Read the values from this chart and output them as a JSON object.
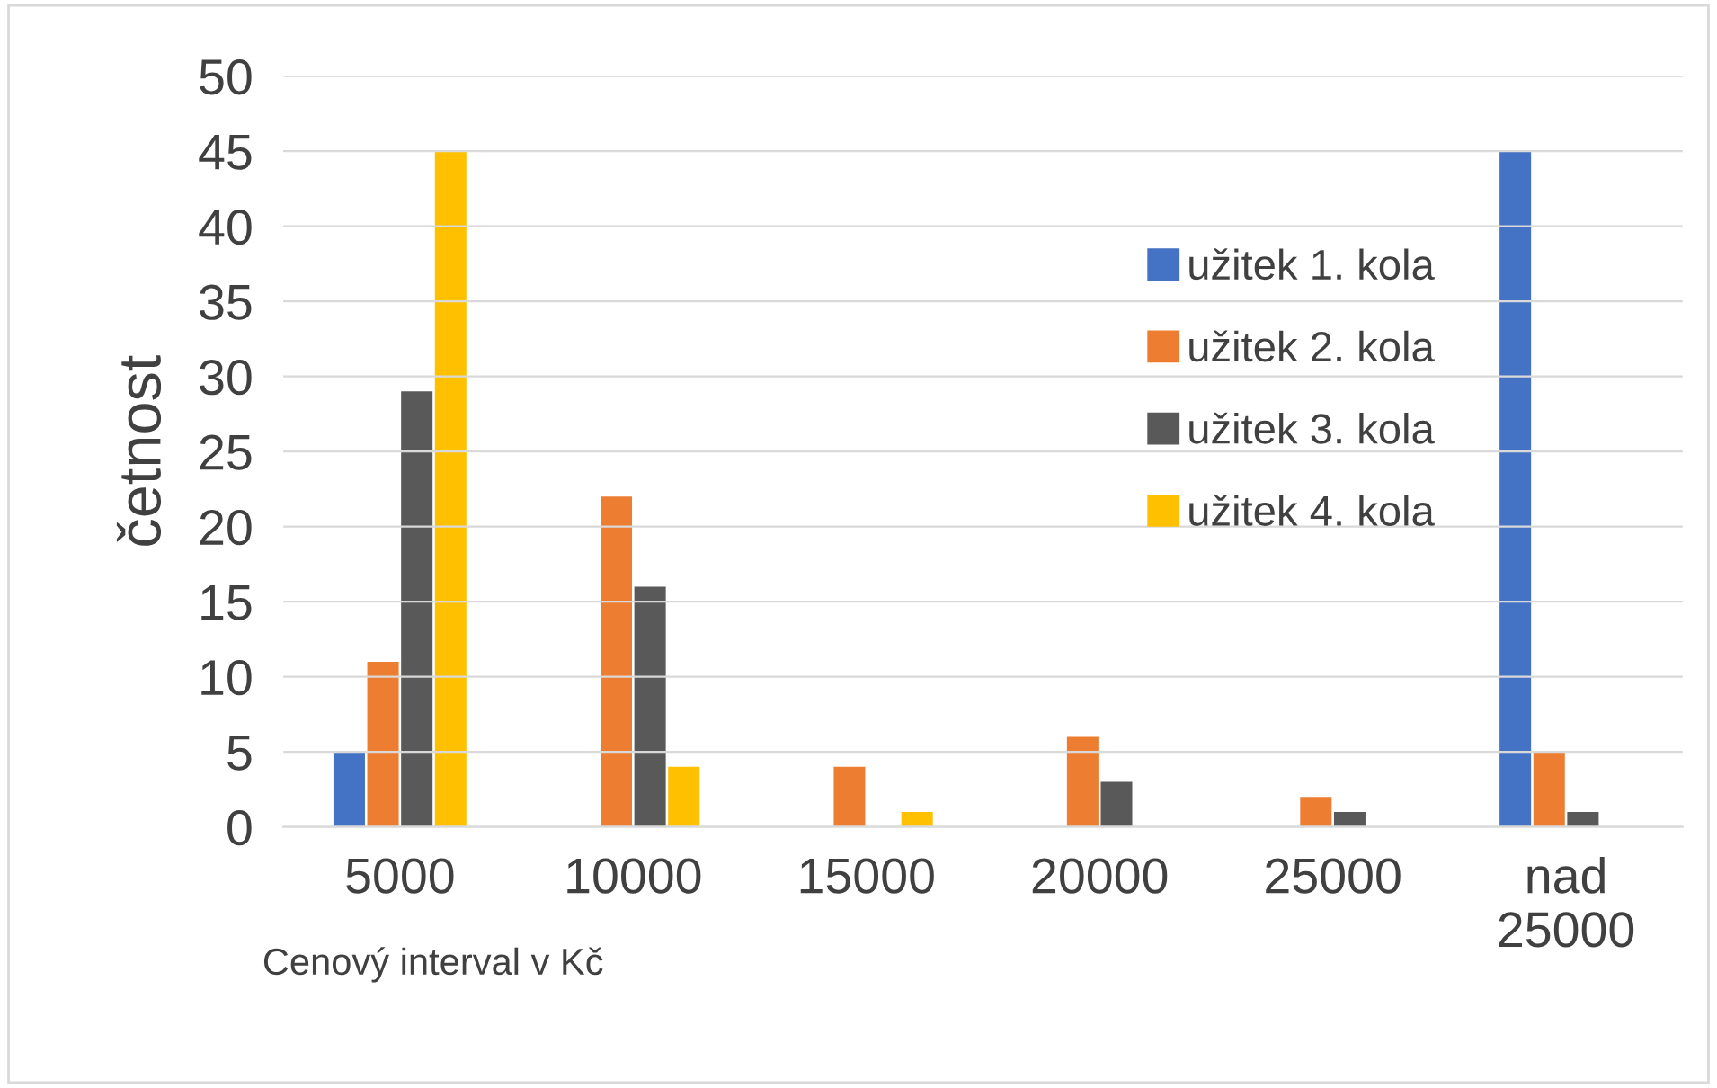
{
  "chart_data": {
    "type": "bar",
    "xlabel": "Cenový interval v Kč",
    "ylabel": "četnost",
    "categories": [
      "5000",
      "10000",
      "15000",
      "20000",
      "25000",
      "nad\n25000"
    ],
    "series": [
      {
        "name": "užitek 1. kola",
        "color": "#4472c4",
        "values": [
          5,
          0,
          0,
          0,
          0,
          45
        ]
      },
      {
        "name": "užitek 2. kola",
        "color": "#ed7d31",
        "values": [
          11,
          22,
          4,
          6,
          2,
          5
        ]
      },
      {
        "name": "užitek 3. kola",
        "color": "#595959",
        "values": [
          29,
          16,
          0,
          3,
          1,
          1
        ]
      },
      {
        "name": "užitek 4. kola",
        "color": "#ffc000",
        "values": [
          45,
          4,
          1,
          0,
          0,
          0
        ]
      }
    ],
    "ylim": [
      0,
      50
    ],
    "yticks": [
      0,
      5,
      10,
      15,
      20,
      25,
      30,
      35,
      40,
      45,
      50
    ],
    "grid": "y",
    "legend": "right"
  }
}
